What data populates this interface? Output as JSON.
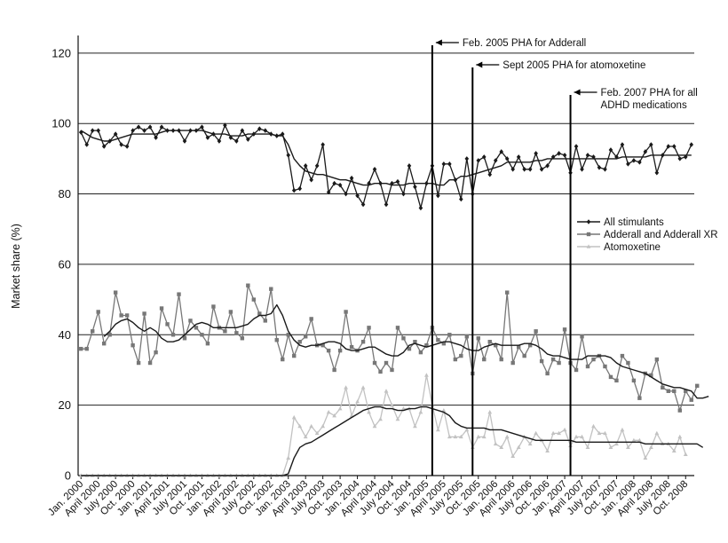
{
  "chart_data": {
    "type": "line",
    "ylabel": "Market share (%)",
    "xlabel": "",
    "ylim": [
      0,
      125
    ],
    "yticks": [
      0,
      20,
      40,
      60,
      80,
      100,
      120
    ],
    "grid": "horizontal",
    "legend_position": "right",
    "x_start": "Jan. 2000",
    "x_tick_labels": [
      "Jan. 2000",
      "April 2000",
      "July 2000",
      "Oct. 2000",
      "Jan. 2001",
      "April 2001",
      "July 2001",
      "Oct. 2001",
      "Jan. 2002",
      "April 2002",
      "July 2002",
      "Oct. 2002",
      "Jan. 2003",
      "April 2003",
      "July 2003",
      "Oct. 2003",
      "Jan. 2004",
      "April 2004",
      "July 2004",
      "Oct. 2004",
      "Jan. 2005",
      "April 2005",
      "July 2005",
      "Oct. 2005",
      "Jan. 2006",
      "April 2006",
      "July 2006",
      "Oct. 2006",
      "Jan. 2007",
      "April 2007",
      "July 2007",
      "Oct. 2007",
      "Jan. 2008",
      "April 2008",
      "July 2008",
      "Oct. 2008"
    ],
    "annotations": [
      {
        "label": "Feb. 2005 PHA for Adderall",
        "month_index": 61
      },
      {
        "label": "Sept 2005 PHA for atomoxetine",
        "month_index": 68
      },
      {
        "label": [
          "Feb. 2007 PHA for all",
          "ADHD medications"
        ],
        "month_index": 85
      }
    ],
    "series": [
      {
        "name": "All stimulants",
        "color": "#1a1a1a",
        "marker": "diamond",
        "values": [
          97.5,
          94,
          98,
          98,
          93.5,
          95,
          97,
          94,
          93.5,
          98,
          99,
          98,
          99,
          96,
          99,
          98,
          98,
          98,
          95,
          98,
          98,
          99,
          96,
          97,
          95,
          99.5,
          96,
          95,
          98,
          95.5,
          97,
          98.5,
          98,
          97,
          96.5,
          97,
          91,
          81,
          81.5,
          88,
          84,
          88,
          94,
          80.5,
          83,
          82.5,
          80,
          84.5,
          79.5,
          77,
          83,
          87,
          83,
          77,
          83,
          83.5,
          80,
          88,
          82,
          76,
          83,
          88,
          79.5,
          88.5,
          88.5,
          84,
          78.5,
          90,
          80,
          89.5,
          90.5,
          85.5,
          89.5,
          92,
          90,
          87,
          90.5,
          87,
          87,
          91.5,
          87,
          88,
          90.5,
          91.5,
          91,
          86,
          93.5,
          87,
          91,
          90.5,
          87.5,
          87,
          92.5,
          90.5,
          94,
          88.5,
          89.5,
          89,
          92,
          94,
          86,
          91,
          93.5,
          93.5,
          90,
          90.5,
          94
        ]
      },
      {
        "name": "Adderall and Adderall XR",
        "color": "#777777",
        "marker": "square",
        "values": [
          36,
          36,
          41,
          46.5,
          37.5,
          40,
          52,
          45.5,
          45.5,
          37,
          32,
          46,
          32,
          35,
          47.5,
          43,
          40,
          51.5,
          39,
          44,
          42,
          40,
          37.5,
          48,
          42,
          41,
          46.5,
          40.5,
          39,
          54,
          50,
          46,
          44,
          53,
          38.5,
          33,
          40,
          34,
          38,
          39.5,
          44.5,
          37,
          37,
          35.5,
          30,
          35.5,
          46.5,
          36.5,
          35.5,
          38,
          42,
          32,
          29.5,
          32,
          30,
          42,
          39,
          36,
          38,
          35,
          37,
          42,
          38.5,
          37.5,
          40,
          33,
          34,
          39.5,
          29,
          39,
          33,
          38,
          37,
          33,
          52,
          32,
          36.5,
          34,
          37,
          41,
          32.5,
          29,
          33,
          32,
          41.5,
          32,
          30,
          39.5,
          31,
          33,
          34,
          31,
          28,
          27,
          34,
          32,
          27,
          22,
          29,
          28.5,
          33,
          25,
          24,
          24,
          18.5,
          24,
          21.5,
          25.5
        ]
      },
      {
        "name": "Atomoxetine",
        "color": "#c2c2c2",
        "marker": "triangle",
        "values": [
          0,
          0,
          0,
          0,
          0,
          0,
          0,
          0,
          0,
          0,
          0,
          0,
          0,
          0,
          0,
          0,
          0,
          0,
          0,
          0,
          0,
          0,
          0,
          0,
          0,
          0,
          0,
          0,
          0,
          0,
          0,
          0,
          0,
          0,
          0,
          0,
          5,
          16.5,
          14,
          11,
          14,
          12,
          14,
          18,
          17,
          19,
          25,
          17,
          21,
          25,
          18,
          14,
          16,
          24,
          20,
          16,
          19,
          19,
          14,
          18,
          28.5,
          20,
          13,
          18.5,
          11,
          11,
          11,
          13,
          8,
          11,
          11,
          18,
          9,
          8,
          11,
          5.5,
          8,
          11,
          9,
          12,
          10,
          7,
          12,
          12,
          13,
          8.5,
          11,
          11,
          8,
          14,
          12,
          12,
          8,
          9,
          13,
          8,
          10,
          10,
          5,
          8,
          12,
          9,
          9,
          7,
          11,
          6
        ]
      },
      {
        "name": "All stimulants (trend)",
        "color": "#1a1a1a",
        "values": [
          98,
          97,
          96,
          95.5,
          95,
          95,
          95.5,
          96,
          96.5,
          97,
          97,
          97,
          97,
          97,
          97.5,
          98,
          98,
          98,
          98,
          98,
          98,
          98,
          97.5,
          97,
          97,
          97,
          96.5,
          96.5,
          96.5,
          97,
          97,
          97,
          97,
          97,
          96.5,
          96.5,
          94,
          90,
          88,
          86.5,
          86,
          85.5,
          85.5,
          85,
          84.5,
          84,
          84,
          83.5,
          83,
          82.5,
          82.5,
          83,
          83,
          83,
          82.5,
          82.5,
          82.5,
          83,
          83,
          83,
          83,
          83,
          82.5,
          82.5,
          84,
          84,
          85,
          85,
          85.5,
          86,
          86.5,
          87,
          87.5,
          88,
          89,
          89,
          89,
          89,
          89,
          89.5,
          89.5,
          90,
          90,
          90,
          90,
          90,
          90,
          90,
          90,
          90,
          90,
          90,
          90,
          90,
          90.5,
          90.5,
          90.5,
          90.5,
          90.5,
          91,
          91,
          91,
          91,
          91,
          91,
          91,
          91
        ]
      },
      {
        "name": "Adderall and Adderall XR (trend)",
        "color": "#1a1a1a",
        "values": [
          null,
          null,
          null,
          null,
          39.5,
          41,
          43,
          44,
          44.5,
          43.5,
          42,
          41,
          42,
          41,
          39,
          38,
          38,
          38.5,
          40,
          41.5,
          43,
          43.5,
          43,
          42,
          42,
          42,
          42,
          42,
          42.5,
          43,
          44.5,
          45.5,
          45.5,
          46,
          48.5,
          45.5,
          41,
          38.5,
          37,
          36.5,
          37,
          37,
          37.5,
          38,
          38,
          37.5,
          36,
          35.5,
          35.5,
          36,
          36.5,
          36.5,
          35.5,
          34.5,
          34,
          34,
          35,
          37,
          37.5,
          37,
          36.5,
          37,
          37.5,
          38,
          38,
          37.5,
          37,
          36,
          35.5,
          35.5,
          36.5,
          37,
          37.5,
          37,
          37,
          37,
          37,
          37.5,
          37.5,
          37,
          36,
          34.5,
          34,
          34,
          33.5,
          33,
          33,
          33,
          34,
          34,
          34,
          34,
          33.5,
          32,
          31,
          30.5,
          30,
          29.5,
          29,
          28,
          27,
          26,
          25.5,
          25,
          25,
          24.5,
          24,
          22,
          22,
          22.5
        ]
      },
      {
        "name": "Atomoxetine (trend)",
        "color": "#1a1a1a",
        "values": [
          0,
          0,
          0,
          0,
          0,
          0,
          0,
          0,
          0,
          0,
          0,
          0,
          0,
          0,
          0,
          0,
          0,
          0,
          0,
          0,
          0,
          0,
          0,
          0,
          0,
          0,
          0,
          0,
          0,
          0,
          0,
          0,
          0,
          0,
          0,
          0,
          0.5,
          5,
          8,
          9,
          9.5,
          10.5,
          11.5,
          12.5,
          13.5,
          14.5,
          15.5,
          16.5,
          17.5,
          18.5,
          19,
          19.5,
          19.5,
          19,
          19,
          18.5,
          18.5,
          19,
          19,
          19.5,
          19.5,
          19,
          18.5,
          18,
          17,
          15,
          14,
          13.5,
          13.5,
          13.5,
          13.5,
          13,
          13,
          13,
          12.5,
          12,
          11.5,
          11,
          10.5,
          10,
          10,
          10,
          10,
          10,
          10,
          10,
          9.5,
          9.5,
          9.5,
          9.5,
          9.5,
          9.5,
          9.5,
          9.5,
          9.5,
          9.5,
          9.5,
          9.5,
          9,
          9,
          9,
          9,
          9,
          9,
          9,
          9,
          9,
          9,
          8
        ]
      }
    ]
  }
}
